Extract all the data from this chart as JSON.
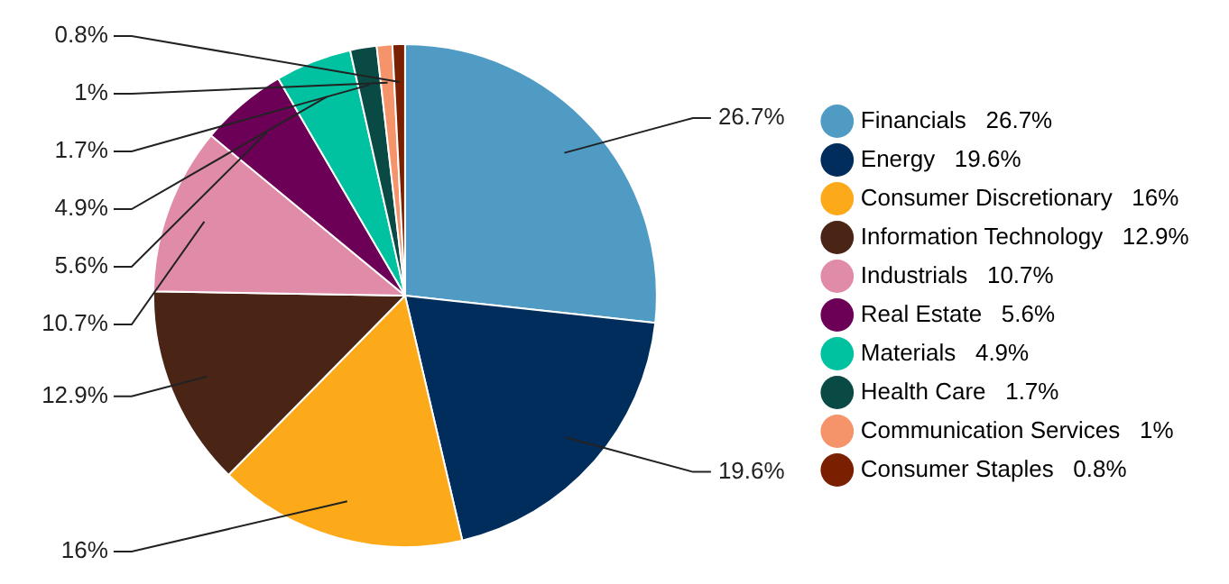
{
  "chart_data": {
    "type": "pie",
    "categories": [
      "Financials",
      "Energy",
      "Consumer Discretionary",
      "Information Technology",
      "Industrials",
      "Real Estate",
      "Materials",
      "Health Care",
      "Communication Services",
      "Consumer Staples"
    ],
    "values": [
      26.7,
      19.6,
      16,
      12.9,
      10.7,
      5.6,
      4.9,
      1.7,
      1,
      0.8
    ],
    "value_labels": [
      "26.7%",
      "19.6%",
      "16%",
      "12.9%",
      "10.7%",
      "5.6%",
      "4.9%",
      "1.7%",
      "1%",
      "0.8%"
    ],
    "colors": [
      "#4f9bc4",
      "#002d5c",
      "#fcaa19",
      "#4a2414",
      "#e08ca8",
      "#6b0056",
      "#00c2a0",
      "#0a4a45",
      "#f5936b",
      "#7a2000"
    ],
    "legend": "right"
  }
}
